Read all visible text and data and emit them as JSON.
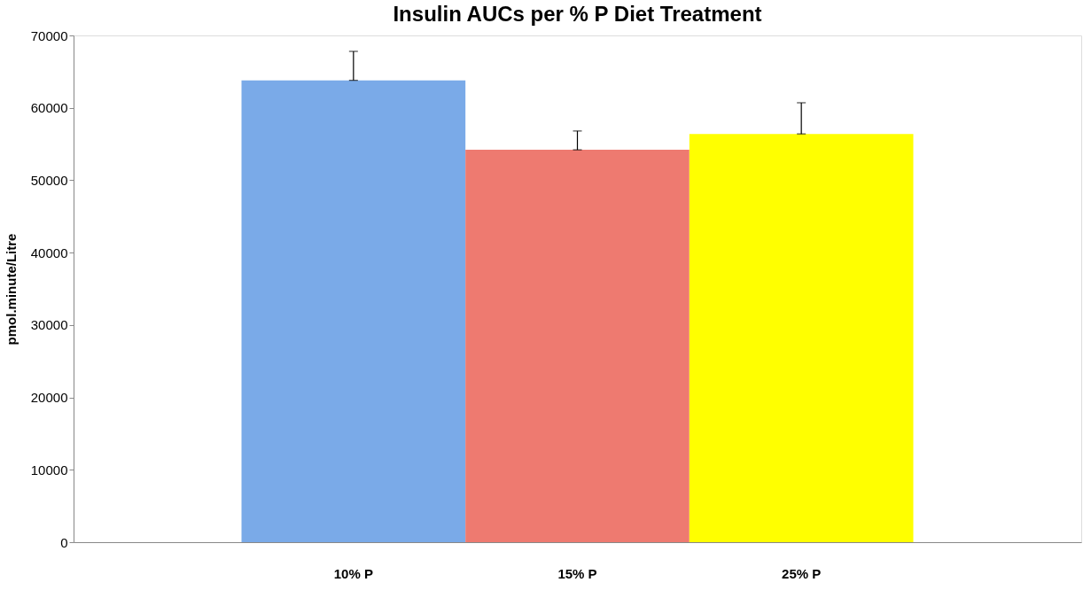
{
  "chart_data": {
    "type": "bar",
    "title": "Insulin AUCs per % P Diet Treatment",
    "ylabel": "pmol.minute/Litre",
    "categories": [
      "10% P",
      "15% P",
      "25% P"
    ],
    "values": [
      63800,
      54200,
      56400
    ],
    "colors": [
      "#7aaae8",
      "#ee7a70",
      "#ffff00"
    ],
    "errors": [
      [
        63800,
        67800
      ],
      [
        54200,
        56800
      ],
      [
        56400,
        60700
      ]
    ],
    "ylim": [
      0,
      70000
    ],
    "yticks": [
      0,
      10000,
      20000,
      30000,
      40000,
      50000,
      60000,
      70000
    ],
    "grid": false
  }
}
